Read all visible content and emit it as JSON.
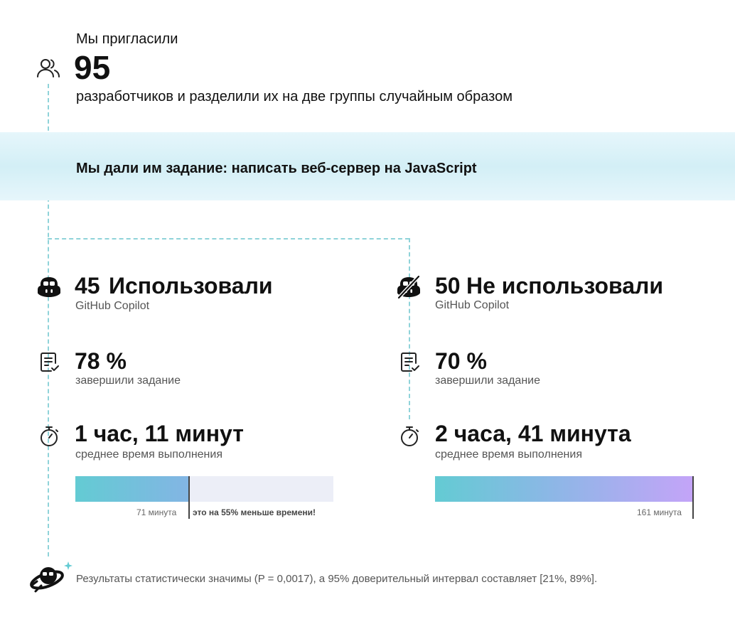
{
  "intro": {
    "before": "Мы пригласили",
    "count": "95",
    "after": "разработчиков и разделили их на две группы случайным образом"
  },
  "banner": {
    "text": "Мы дали им задание: написать веб-сервер на JavaScript"
  },
  "groups": [
    {
      "count": "45",
      "title": "Использовали",
      "subtitle": "GitHub Copilot",
      "completion": {
        "value": "78 %",
        "label": "завершили задание"
      },
      "time": {
        "value": "1 час, 11 минут",
        "label": "среднее время выполнения"
      },
      "bar": {
        "minutes": 71,
        "max_minutes": 161,
        "value_label": "71 минута",
        "note": "это на 55% меньше времени!"
      }
    },
    {
      "count": "50",
      "title": "Не использовали",
      "subtitle": "GitHub Copilot",
      "completion": {
        "value": "70 %",
        "label": "завершили задание"
      },
      "time": {
        "value": "2 часа, 41 минута",
        "label": "среднее время выполнения"
      },
      "bar": {
        "minutes": 161,
        "max_minutes": 161,
        "value_label": "161 минута"
      }
    }
  ],
  "footnote": "Результаты статистически значимы (P = 0,0017), а 95% доверительный интервал составляет [21%, 89%].",
  "colors": {
    "accent_teal": "#63cbd3",
    "accent_purple": "#c4a4f8",
    "banner_bg": "#d3eff6",
    "dashed_line": "#8fd3d9"
  },
  "icons": [
    "people-icon",
    "copilot-icon",
    "copilot-off-icon",
    "checklist-icon",
    "stopwatch-icon",
    "copilot-rocket-icon"
  ]
}
